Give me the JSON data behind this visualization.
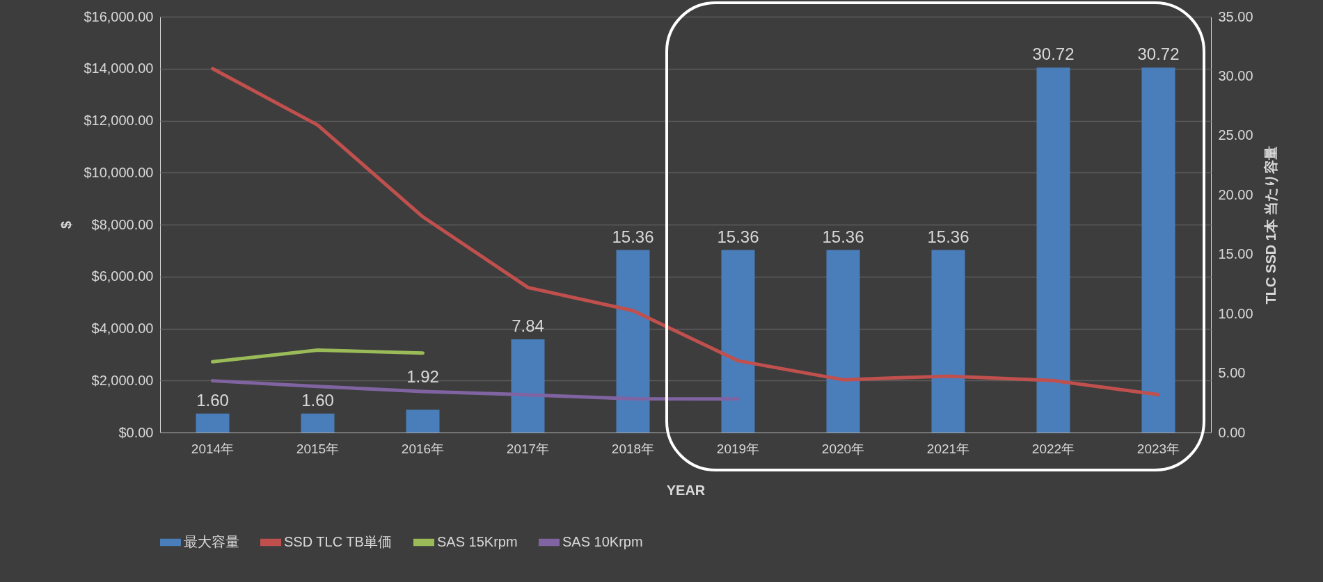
{
  "chart_data": {
    "type": "bar",
    "xlabel": "YEAR",
    "ylabel": "$",
    "y2label": "TLC SSD 1本 当たり容量",
    "categories": [
      "2014年",
      "2015年",
      "2016年",
      "2017年",
      "2018年",
      "2019年",
      "2020年",
      "2021年",
      "2022年",
      "2023年"
    ],
    "series": [
      {
        "name": "最大容量",
        "axis": "y2",
        "color": "#4a7ebb",
        "values": [
          1.6,
          1.6,
          1.92,
          7.84,
          15.36,
          15.36,
          15.36,
          15.36,
          30.72,
          30.72
        ],
        "value_labels": [
          "1.60",
          "1.60",
          "1.92",
          "7.84",
          "15.36",
          "15.36",
          "15.36",
          "15.36",
          "30.72",
          "30.72"
        ]
      },
      {
        "name": "SSD TLC TB単価",
        "type": "line",
        "color": "#c0504d",
        "values": [
          14000,
          11830,
          8300,
          5580,
          4690,
          2760,
          2030,
          2170,
          2000,
          1460
        ]
      },
      {
        "name": "SAS 15Krpm",
        "type": "line",
        "color": "#9bbb59",
        "values": [
          2720,
          3170,
          3060,
          null,
          null,
          null,
          null,
          null,
          null,
          null
        ]
      },
      {
        "name": "SAS 10Krpm",
        "type": "line",
        "color": "#8064a2",
        "values": [
          1990,
          1770,
          1580,
          1450,
          1300,
          1290,
          null,
          null,
          null,
          null
        ]
      }
    ],
    "ylim": [
      0,
      16000
    ],
    "yticks": [
      {
        "value": 0,
        "label": "$0.00"
      },
      {
        "value": 2000,
        "label": "$2,000.00"
      },
      {
        "value": 4000,
        "label": "$4,000.00"
      },
      {
        "value": 6000,
        "label": "$6,000.00"
      },
      {
        "value": 8000,
        "label": "$8,000.00"
      },
      {
        "value": 10000,
        "label": "$10,000.00"
      },
      {
        "value": 12000,
        "label": "$12,000.00"
      },
      {
        "value": 14000,
        "label": "$14,000.00"
      },
      {
        "value": 16000,
        "label": "$16,000.00"
      }
    ],
    "y2lim": [
      0,
      35
    ],
    "y2ticks": [
      {
        "value": 0,
        "label": "0.00"
      },
      {
        "value": 5,
        "label": "5.00"
      },
      {
        "value": 10,
        "label": "10.00"
      },
      {
        "value": 15,
        "label": "15.00"
      },
      {
        "value": 20,
        "label": "20.00"
      },
      {
        "value": 25,
        "label": "25.00"
      },
      {
        "value": 30,
        "label": "30.00"
      },
      {
        "value": 35,
        "label": "35.00"
      }
    ],
    "grid": "y",
    "legend": "bottom",
    "line_style": "solid"
  }
}
